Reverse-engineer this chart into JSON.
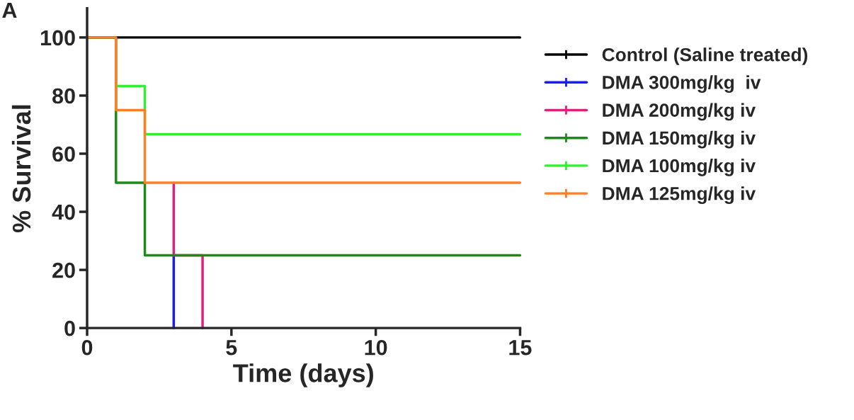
{
  "chart_data": {
    "type": "step",
    "xlabel": "Time (days)",
    "ylabel": "% Survival",
    "annotations": [
      "A"
    ],
    "xlim": [
      0,
      15
    ],
    "xticks": [
      0,
      5,
      10,
      15
    ],
    "ylim": [
      0,
      110
    ],
    "yticks": [
      0,
      20,
      40,
      60,
      80,
      100
    ],
    "grid": false,
    "legend": "right",
    "line_style": "solid",
    "series": [
      {
        "name": "Control (Saline treated)",
        "color": "#000000",
        "x": [
          0,
          15
        ],
        "values": [
          100,
          100
        ]
      },
      {
        "name": "DMA 300mg/kg  iv",
        "color": "#1a1aff",
        "x": [
          3,
          3
        ],
        "values": [
          25,
          0
        ]
      },
      {
        "name": "DMA 200mg/kg iv",
        "color": "#e0207a",
        "x": [
          3,
          3,
          4,
          4
        ],
        "values": [
          50,
          25,
          25,
          0
        ]
      },
      {
        "name": "DMA 150mg/kg iv",
        "color": "#1a8a1a",
        "x": [
          0,
          1,
          2,
          15
        ],
        "values": [
          100,
          50,
          25,
          25
        ]
      },
      {
        "name": "DMA 100mg/kg iv",
        "color": "#33ee33",
        "x": [
          1,
          2,
          15
        ],
        "values": [
          83.3,
          66.7,
          66.7
        ]
      },
      {
        "name": "DMA 125mg/kg iv",
        "color": "#ff7f27",
        "x": [
          0,
          1,
          2,
          15
        ],
        "values": [
          100,
          75,
          50,
          50
        ]
      }
    ]
  }
}
